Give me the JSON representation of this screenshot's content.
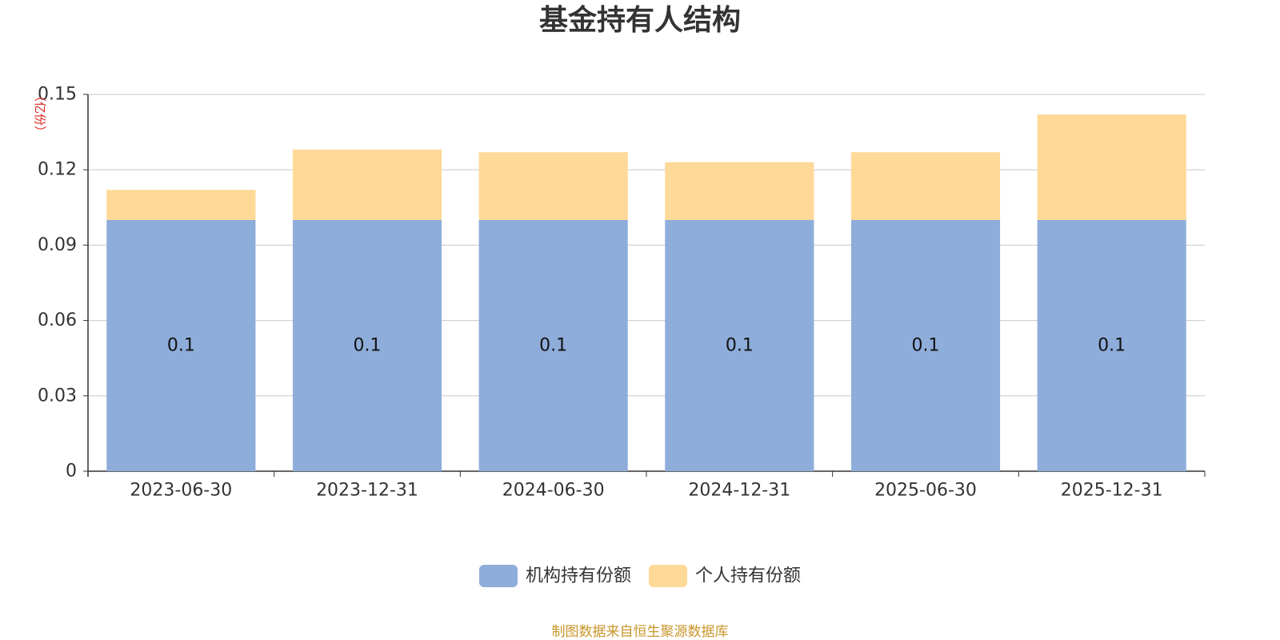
{
  "chart_data": {
    "type": "bar",
    "stacked": true,
    "title": "基金持有人结构",
    "ylabel": "（亿份）",
    "xlabel": "",
    "categories": [
      "2023-06-30",
      "2023-12-31",
      "2024-06-30",
      "2024-12-31",
      "2025-06-30",
      "2025-12-31"
    ],
    "ylim": [
      0,
      0.15
    ],
    "yticks": [
      "0",
      "0.03",
      "0.06",
      "0.09",
      "0.12",
      "0.15"
    ],
    "grid": true,
    "legend_position": "bottom-center",
    "series": [
      {
        "name": "机构持有份额",
        "color": "#8eaddb",
        "values": [
          0.1,
          0.1,
          0.1,
          0.1,
          0.1,
          0.1
        ],
        "data_labels": [
          "0.1",
          "0.1",
          "0.1",
          "0.1",
          "0.1",
          "0.1"
        ]
      },
      {
        "name": "个人持有份额",
        "color": "#fed997",
        "values": [
          0.012,
          0.028,
          0.027,
          0.023,
          0.027,
          0.042
        ],
        "data_labels": []
      }
    ]
  },
  "footer": {
    "source": "制图数据来自恒生聚源数据库"
  }
}
